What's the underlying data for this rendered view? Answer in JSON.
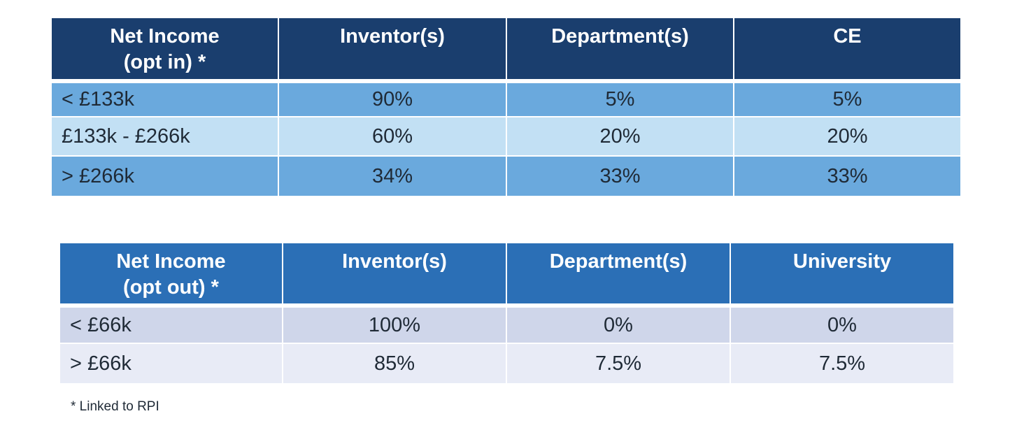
{
  "table_opt_in": {
    "headers": [
      "Net Income\n(opt in) *",
      "Inventor(s)",
      "Department(s)",
      "CE"
    ],
    "rows": [
      [
        "< £133k",
        "90%",
        "5%",
        "5%"
      ],
      [
        "£133k - £266k",
        "60%",
        "20%",
        "20%"
      ],
      [
        "> £266k",
        "34%",
        "33%",
        "33%"
      ]
    ]
  },
  "table_opt_out": {
    "headers": [
      "Net Income\n(opt out) *",
      "Inventor(s)",
      "Department(s)",
      "University"
    ],
    "rows": [
      [
        "< £66k",
        "100%",
        "0%",
        "0%"
      ],
      [
        "> £66k",
        "85%",
        "7.5%",
        "7.5%"
      ]
    ]
  },
  "footnote": "* Linked to RPI",
  "colors": {
    "opt_in_header": "#1a3e6e",
    "opt_in_row_dark": "#6aa9dd",
    "opt_in_row_light": "#c2e0f4",
    "opt_out_header": "#2b6fb6",
    "opt_out_row_dark": "#cfd6ea",
    "opt_out_row_light": "#e8ebf6"
  }
}
